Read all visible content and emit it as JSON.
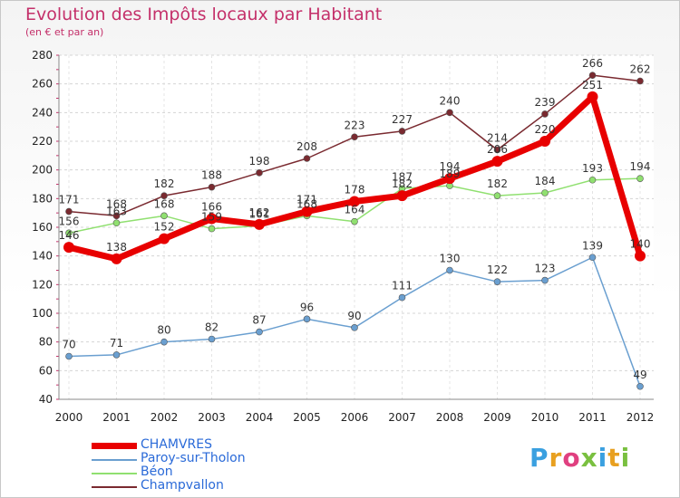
{
  "header": {
    "title": "Evolution des Impôts locaux par Habitant",
    "subtitle": "(en € et par an)"
  },
  "logo": {
    "text": "Proxiti",
    "letter_colors": [
      "#3aa0e0",
      "#e8a020",
      "#e04080",
      "#7ac040",
      "#3aa0e0",
      "#e8a020",
      "#7ac040"
    ]
  },
  "chart_data": {
    "type": "line",
    "title": "Evolution des Impôts locaux par Habitant",
    "subtitle": "(en € et par an)",
    "xlabel": "",
    "ylabel": "",
    "categories": [
      "2000",
      "2001",
      "2002",
      "2003",
      "2004",
      "2005",
      "2006",
      "2007",
      "2008",
      "2009",
      "2010",
      "2011",
      "2012"
    ],
    "ylim": [
      40,
      280
    ],
    "yticks": [
      40,
      60,
      80,
      100,
      120,
      140,
      160,
      180,
      200,
      220,
      240,
      260,
      280
    ],
    "grid": "horizontal dashed",
    "legend": "bottom-left",
    "series": [
      {
        "name": "CHAMVRES",
        "color": "#e80000",
        "width": 7,
        "marker": 6,
        "values": [
          146,
          138,
          152,
          166,
          162,
          171,
          178,
          182,
          194,
          206,
          220,
          251,
          140
        ]
      },
      {
        "name": "Paroy-sur-Tholon",
        "color": "#6a9fd0",
        "width": 1.5,
        "marker": 3.5,
        "values": [
          70,
          71,
          80,
          82,
          87,
          96,
          90,
          111,
          130,
          122,
          123,
          139,
          49
        ]
      },
      {
        "name": "Béon",
        "color": "#90e070",
        "width": 1.5,
        "marker": 3.5,
        "values": [
          156,
          163,
          168,
          159,
          161,
          168,
          164,
          187,
          189,
          182,
          184,
          193,
          194
        ]
      },
      {
        "name": "Champvallon",
        "color": "#7a2a30",
        "width": 1.5,
        "marker": 3.5,
        "values": [
          171,
          168,
          182,
          188,
          198,
          208,
          223,
          227,
          240,
          214,
          239,
          266,
          262
        ]
      }
    ]
  }
}
